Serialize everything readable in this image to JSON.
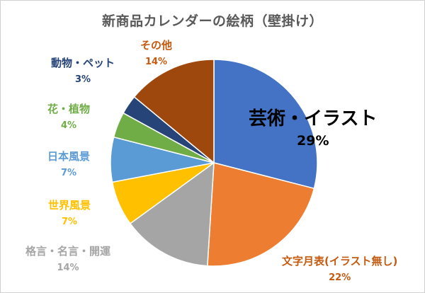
{
  "chart_data": {
    "type": "pie",
    "title": "新商品カレンダーの絵柄（壁掛け）",
    "legend": "none",
    "slices": [
      {
        "name": "芸術・イラスト",
        "value": 29,
        "label": "29%",
        "color": "#4472C4",
        "label_color": "#000000"
      },
      {
        "name": "文字月表(イラスト無し)",
        "value": 22,
        "label": "22%",
        "color": "#ED7D31",
        "label_color": "#C55A11"
      },
      {
        "name": "格言・名言・開運",
        "value": 14,
        "label": "14%",
        "color": "#A5A5A5",
        "label_color": "#A5A5A5"
      },
      {
        "name": "世界風景",
        "value": 7,
        "label": "7%",
        "color": "#FFC000",
        "label_color": "#FFC000"
      },
      {
        "name": "日本風景",
        "value": 7,
        "label": "7%",
        "color": "#5B9BD5",
        "label_color": "#5B9BD5"
      },
      {
        "name": "花・植物",
        "value": 4,
        "label": "4%",
        "color": "#70AD47",
        "label_color": "#70AD47"
      },
      {
        "name": "動物・ペット",
        "value": 3,
        "label": "3%",
        "color": "#264478",
        "label_color": "#264478"
      },
      {
        "name": "その他",
        "value": 14,
        "label": "14%",
        "color": "#9E480E",
        "label_color": "#C55A11"
      }
    ]
  }
}
